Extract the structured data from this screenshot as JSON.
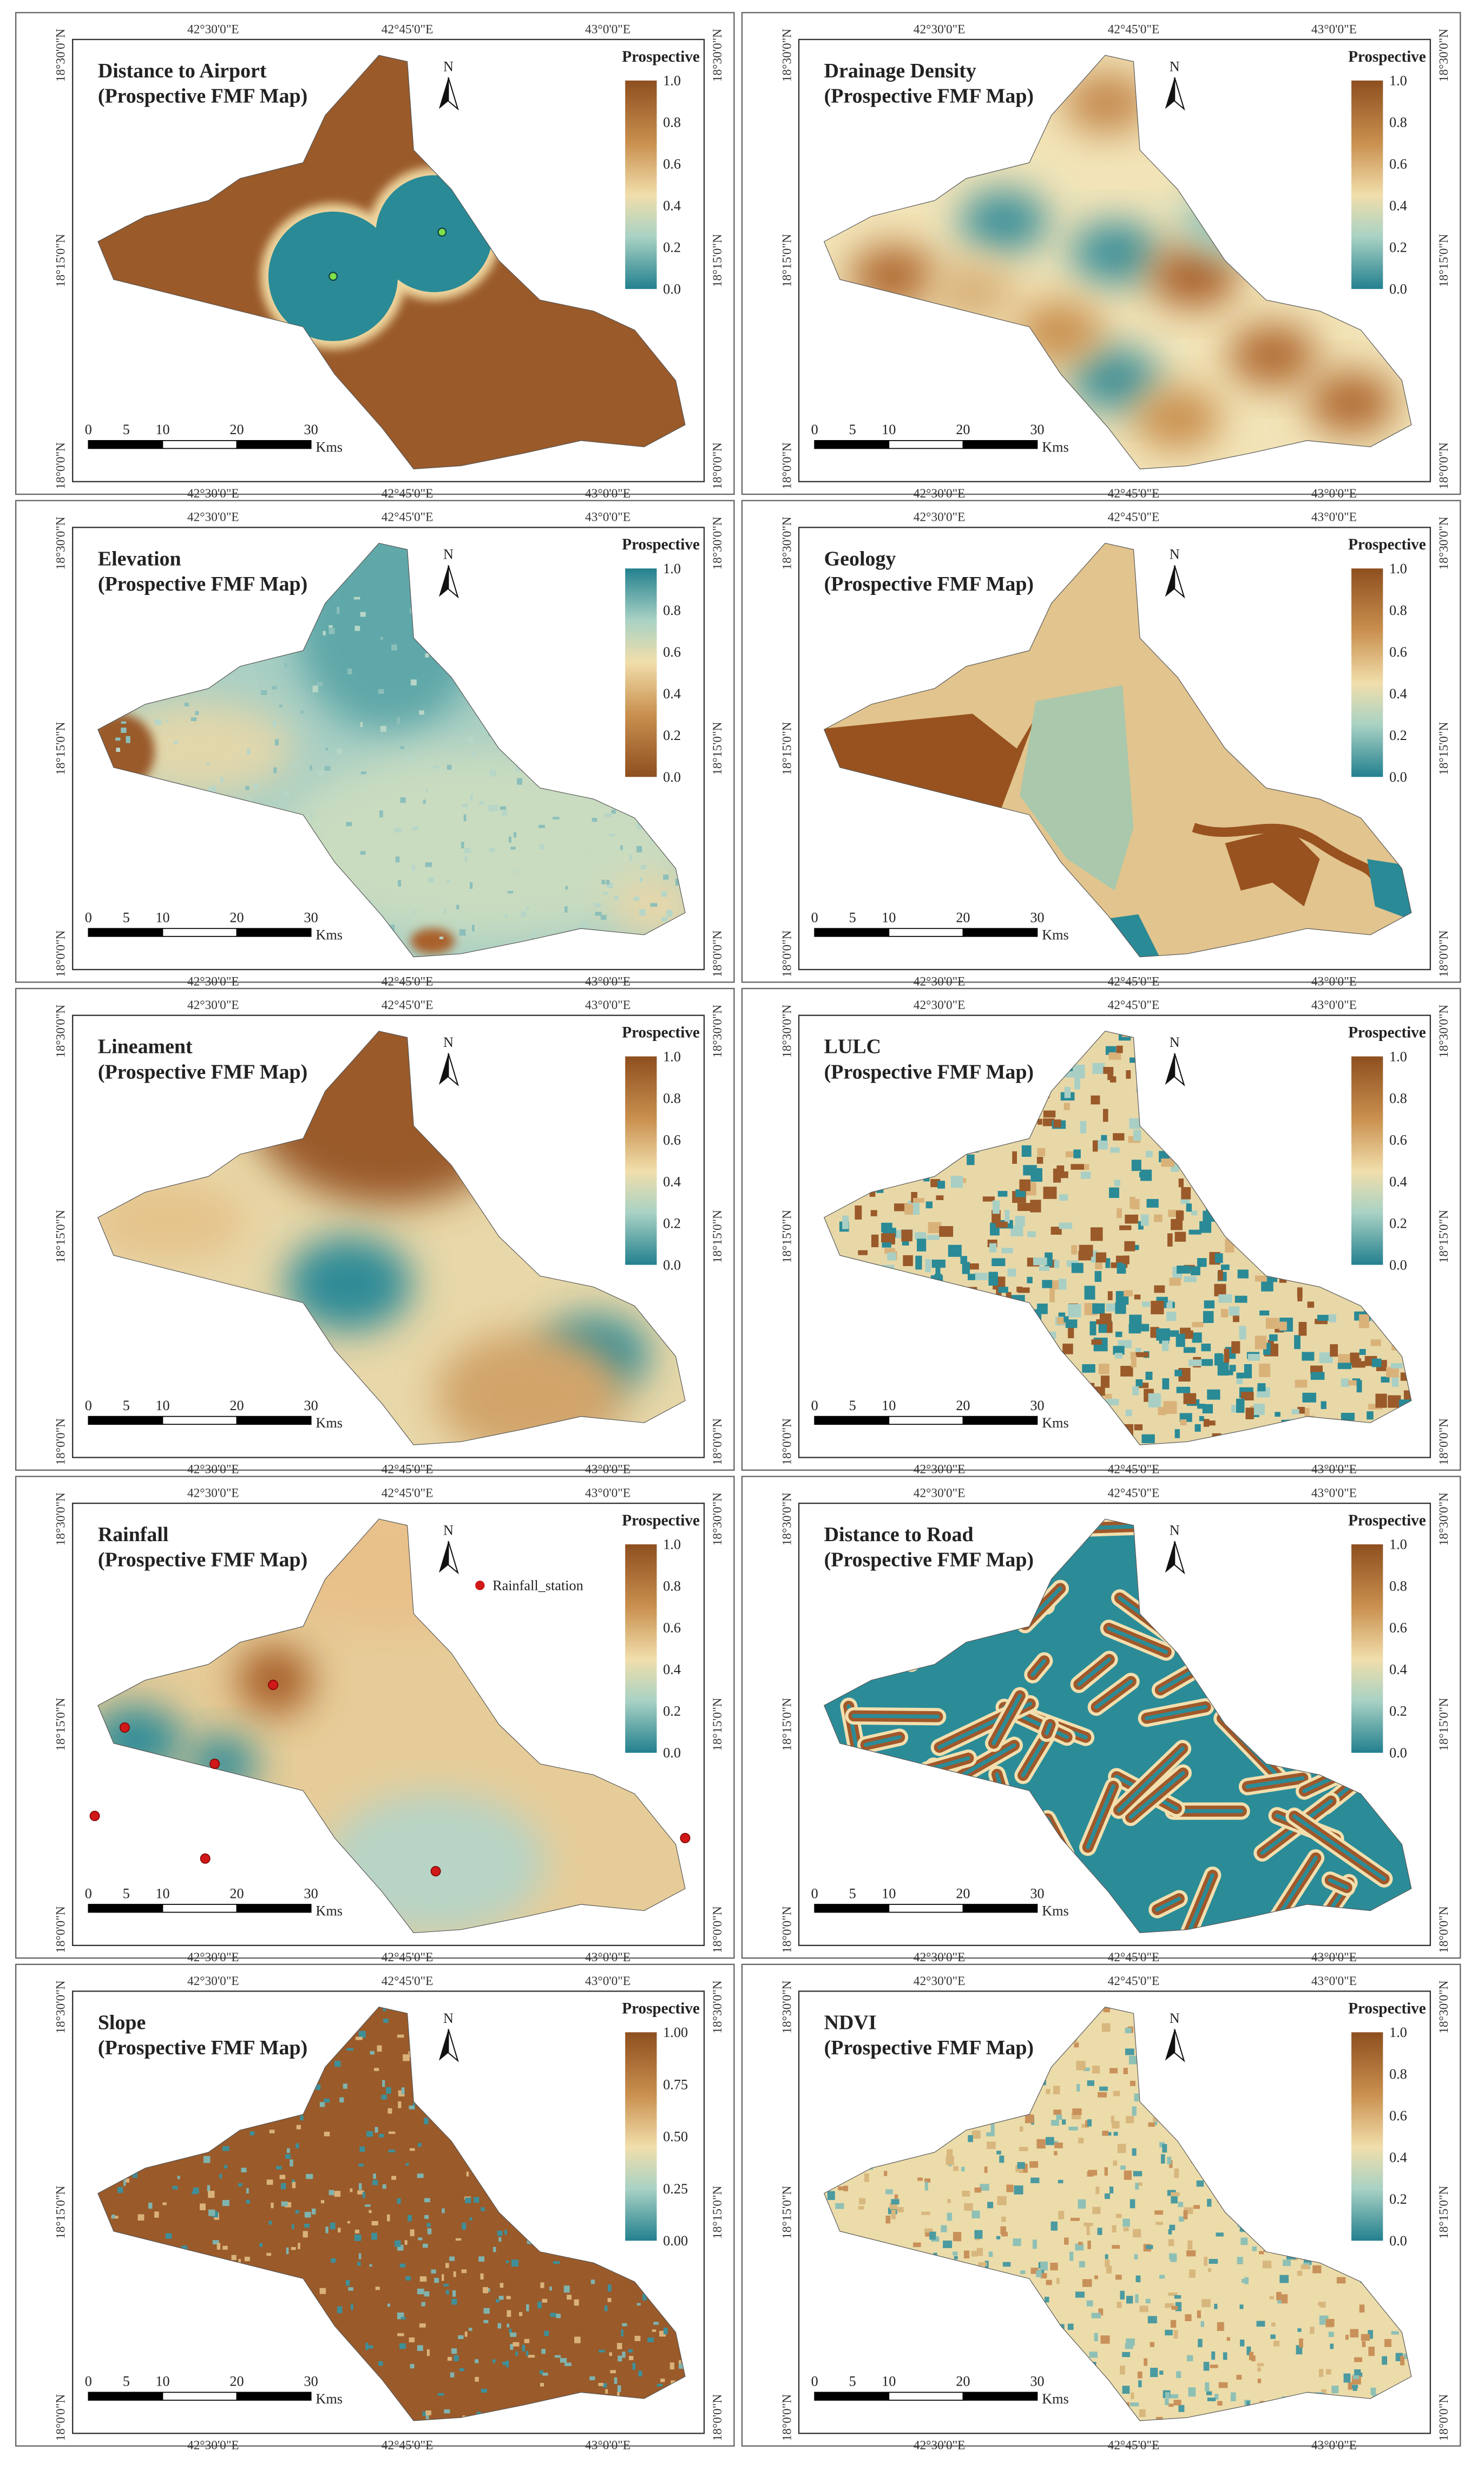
{
  "panels": [
    {
      "title": "Distance to Airport",
      "subtitle": "(Prospective FMF Map)",
      "legend_title": "Prospective",
      "legend_ticks": [
        "1.0",
        "0.8",
        "0.6",
        "0.4",
        "0.2",
        "0.0"
      ]
    },
    {
      "title": "Drainage Density",
      "subtitle": "(Prospective FMF Map)",
      "legend_title": "Prospective",
      "legend_ticks": [
        "1.0",
        "0.8",
        "0.6",
        "0.4",
        "0.2",
        "0.0"
      ]
    },
    {
      "title": "Elevation",
      "subtitle": "(Prospective FMF Map)",
      "legend_title": "Prospective",
      "legend_ticks": [
        "1.0",
        "0.8",
        "0.6",
        "0.4",
        "0.2",
        "0.0"
      ]
    },
    {
      "title": "Geology",
      "subtitle": "(Prospective FMF Map)",
      "legend_title": "Prospective",
      "legend_ticks": [
        "1.0",
        "0.8",
        "0.6",
        "0.4",
        "0.2",
        "0.0"
      ]
    },
    {
      "title": "Lineament",
      "subtitle": "(Prospective FMF Map)",
      "legend_title": "Prospective",
      "legend_ticks": [
        "1.0",
        "0.8",
        "0.6",
        "0.4",
        "0.2",
        "0.0"
      ]
    },
    {
      "title": "LULC",
      "subtitle": "(Prospective FMF Map)",
      "legend_title": "Prospective",
      "legend_ticks": [
        "1.0",
        "0.8",
        "0.6",
        "0.4",
        "0.2",
        "0.0"
      ]
    },
    {
      "title": "Rainfall",
      "subtitle": "(Prospective FMF Map)",
      "legend_title": "Prospective",
      "legend_ticks": [
        "1.0",
        "0.8",
        "0.6",
        "0.4",
        "0.2",
        "0.0"
      ],
      "station_label": "Rainfall_station"
    },
    {
      "title": "Distance to Road",
      "subtitle": "(Prospective FMF Map)",
      "legend_title": "Prospective",
      "legend_ticks": [
        "1.0",
        "0.8",
        "0.6",
        "0.4",
        "0.2",
        "0.0"
      ]
    },
    {
      "title": "Slope",
      "subtitle": "(Prospective FMF Map)",
      "legend_title": "Prospective",
      "legend_ticks": [
        "1.00",
        "0.75",
        "0.50",
        "0.25",
        "0.00"
      ]
    },
    {
      "title": "NDVI",
      "subtitle": "(Prospective FMF Map)",
      "legend_title": "Prospective",
      "legend_ticks": [
        "1.0",
        "0.8",
        "0.6",
        "0.4",
        "0.2",
        "0.0"
      ]
    }
  ],
  "graticule": {
    "lon": [
      "42°30'0\"E",
      "42°45'0\"E",
      "43°0'0\"E"
    ],
    "lat": [
      "18°30'0\"N",
      "18°15'0\"N",
      "18°0'0\"N"
    ]
  },
  "north": "N",
  "scale_bar": {
    "ticks": [
      "0",
      "5",
      "10",
      "20",
      "30"
    ],
    "unit": "Kms"
  }
}
